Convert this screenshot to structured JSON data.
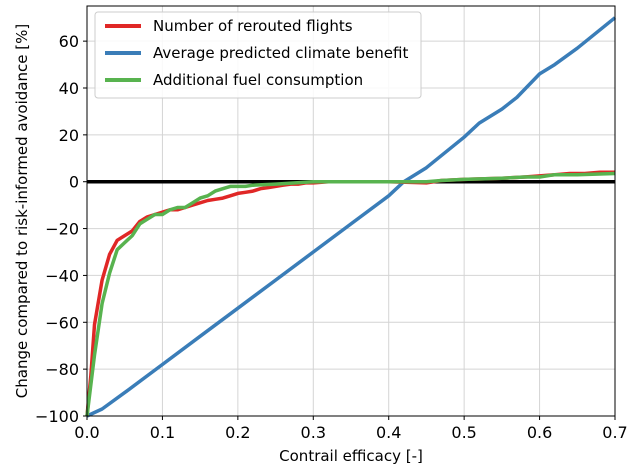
{
  "chart_data": {
    "type": "line",
    "xlabel": "Contrail efficacy [-]",
    "ylabel": "Change compared to risk-informed avoidance [%]",
    "xlim": [
      0.0,
      0.7
    ],
    "ylim": [
      -100,
      75
    ],
    "xticks": [
      0.0,
      0.1,
      0.2,
      0.3,
      0.4,
      0.5,
      0.6,
      0.7
    ],
    "xtick_labels": [
      "0.0",
      "0.1",
      "0.2",
      "0.3",
      "0.4",
      "0.5",
      "0.6",
      "0.7"
    ],
    "yticks": [
      -100,
      -80,
      -60,
      -40,
      -20,
      0,
      20,
      40,
      60
    ],
    "ytick_labels": [
      "−100",
      "−80",
      "−60",
      "−40",
      "−20",
      "0",
      "20",
      "40",
      "60"
    ],
    "grid": true,
    "zero_line": true,
    "legend_position": "upper-left",
    "series": [
      {
        "name": "Number of rerouted flights",
        "color": "#e02726",
        "x": [
          0.0,
          0.005,
          0.01,
          0.02,
          0.03,
          0.04,
          0.05,
          0.06,
          0.07,
          0.08,
          0.09,
          0.1,
          0.11,
          0.12,
          0.13,
          0.14,
          0.15,
          0.16,
          0.17,
          0.18,
          0.19,
          0.2,
          0.21,
          0.22,
          0.23,
          0.24,
          0.25,
          0.26,
          0.27,
          0.28,
          0.29,
          0.3,
          0.32,
          0.35,
          0.4,
          0.45,
          0.47,
          0.5,
          0.55,
          0.58,
          0.6,
          0.62,
          0.64,
          0.66,
          0.68,
          0.7
        ],
        "y": [
          -100,
          -83,
          -61,
          -42,
          -31,
          -25,
          -23,
          -21,
          -17,
          -15,
          -14,
          -13,
          -12,
          -12,
          -11,
          -10,
          -9,
          -8,
          -7.5,
          -7,
          -6,
          -5,
          -4.5,
          -4,
          -3,
          -2.5,
          -2,
          -1.5,
          -1,
          -1,
          -0.5,
          -0.5,
          0,
          0,
          0,
          -0.5,
          0.5,
          1,
          1.5,
          2,
          2.5,
          3,
          3.5,
          3.5,
          4,
          4
        ]
      },
      {
        "name": "Average predicted climate benefit",
        "color": "#3a7db8",
        "x": [
          0.0,
          0.01,
          0.02,
          0.05,
          0.1,
          0.15,
          0.2,
          0.25,
          0.3,
          0.35,
          0.4,
          0.42,
          0.45,
          0.5,
          0.52,
          0.55,
          0.57,
          0.6,
          0.62,
          0.65,
          0.7
        ],
        "y": [
          -100,
          -98.5,
          -97,
          -90,
          -78,
          -66,
          -54,
          -42,
          -30,
          -18,
          -6,
          0,
          6,
          19,
          25,
          31,
          36,
          46,
          50,
          57,
          70
        ]
      },
      {
        "name": "Additional fuel consumption",
        "color": "#58b34f",
        "x": [
          0.0,
          0.01,
          0.02,
          0.03,
          0.04,
          0.05,
          0.06,
          0.07,
          0.08,
          0.09,
          0.1,
          0.11,
          0.12,
          0.13,
          0.14,
          0.15,
          0.16,
          0.17,
          0.18,
          0.19,
          0.2,
          0.21,
          0.22,
          0.25,
          0.3,
          0.35,
          0.4,
          0.45,
          0.47,
          0.5,
          0.55,
          0.58,
          0.6,
          0.62,
          0.65,
          0.7
        ],
        "y": [
          -100,
          -74,
          -52,
          -39,
          -29,
          -26,
          -23,
          -18,
          -16,
          -14,
          -14,
          -12,
          -11,
          -11,
          -9,
          -7,
          -6,
          -4,
          -3,
          -2,
          -2,
          -2,
          -1.5,
          -1,
          0,
          0,
          0,
          0,
          0.5,
          1,
          1.5,
          2,
          2,
          3,
          3,
          3.5
        ]
      }
    ]
  }
}
